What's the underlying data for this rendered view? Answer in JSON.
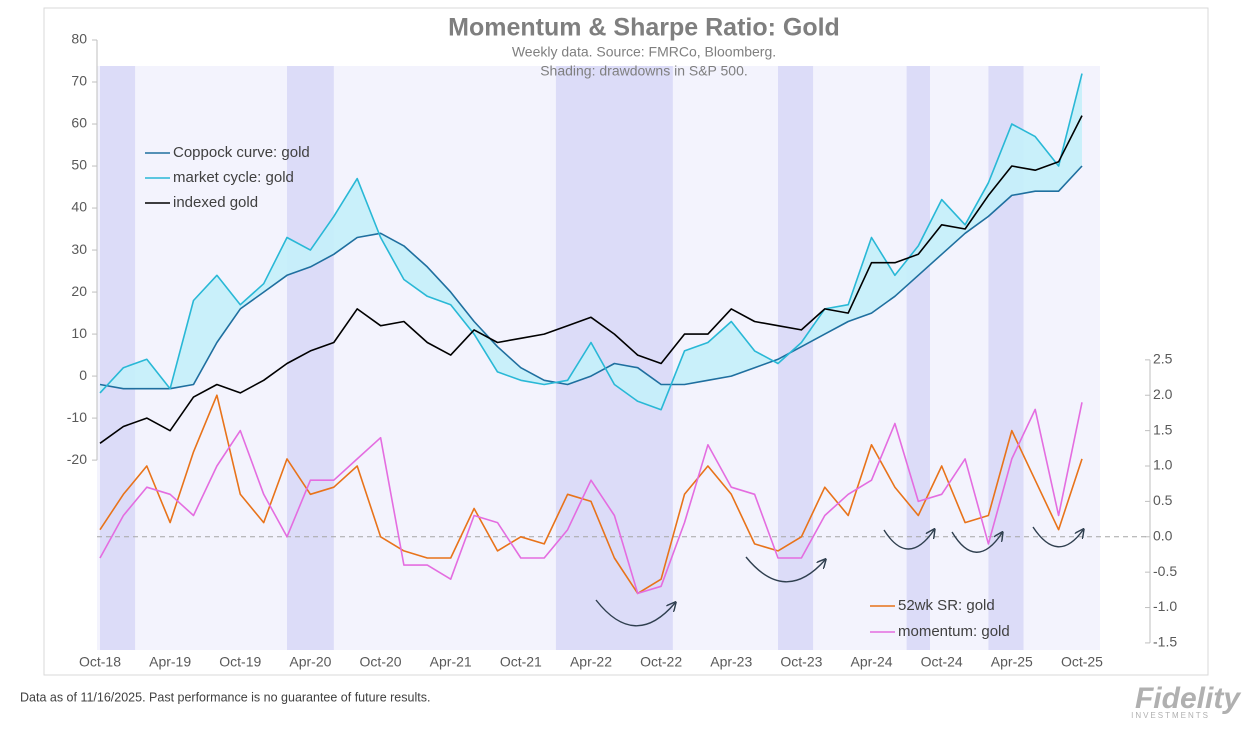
{
  "chart_data": {
    "type": "line",
    "title": "Momentum & Sharpe Ratio: Gold",
    "subtitle": "Weekly data.  Source: FMRCo, Bloomberg.",
    "subtitle2": "Shading: drawdowns in S&P 500.",
    "footnote": "Data as of 11/16/2025. Past performance is no guarantee of future results.",
    "brand": "Fidelity",
    "brand_sub": "INVESTMENTS",
    "x": [
      "2018-10",
      "2018-12",
      "2019-02",
      "2019-04",
      "2019-06",
      "2019-08",
      "2019-10",
      "2019-12",
      "2020-02",
      "2020-04",
      "2020-06",
      "2020-08",
      "2020-10",
      "2020-12",
      "2021-02",
      "2021-04",
      "2021-06",
      "2021-08",
      "2021-10",
      "2021-12",
      "2022-02",
      "2022-04",
      "2022-06",
      "2022-08",
      "2022-10",
      "2022-12",
      "2023-02",
      "2023-04",
      "2023-06",
      "2023-08",
      "2023-10",
      "2023-12",
      "2024-02",
      "2024-04",
      "2024-06",
      "2024-08",
      "2024-10",
      "2024-12",
      "2025-02",
      "2025-04",
      "2025-06",
      "2025-08",
      "2025-10"
    ],
    "xticks": [
      {
        "value": "2018-10",
        "label": "Oct-18"
      },
      {
        "value": "2019-04",
        "label": "Apr-19"
      },
      {
        "value": "2019-10",
        "label": "Oct-19"
      },
      {
        "value": "2020-04",
        "label": "Apr-20"
      },
      {
        "value": "2020-10",
        "label": "Oct-20"
      },
      {
        "value": "2021-04",
        "label": "Apr-21"
      },
      {
        "value": "2021-10",
        "label": "Oct-21"
      },
      {
        "value": "2022-04",
        "label": "Apr-22"
      },
      {
        "value": "2022-10",
        "label": "Oct-22"
      },
      {
        "value": "2023-04",
        "label": "Apr-23"
      },
      {
        "value": "2023-10",
        "label": "Oct-23"
      },
      {
        "value": "2024-04",
        "label": "Apr-24"
      },
      {
        "value": "2024-10",
        "label": "Oct-24"
      },
      {
        "value": "2025-04",
        "label": "Apr-25"
      },
      {
        "value": "2025-10",
        "label": "Oct-25"
      }
    ],
    "ylim": [
      -65.2,
      80
    ],
    "yticks": [
      -20,
      -10,
      0,
      10,
      20,
      30,
      40,
      50,
      60,
      70,
      80
    ],
    "y2lim": [
      -1.6,
      7.02
    ],
    "y2ticks": [
      {
        "value": -1.5,
        "label": "-1.5"
      },
      {
        "value": -1,
        "label": "-1.0"
      },
      -0.5,
      {
        "value": 0,
        "label": "0.0"
      },
      0.5,
      {
        "value": 1,
        "label": "1.0"
      },
      1.5,
      {
        "value": 2,
        "label": "2.0"
      },
      2.5
    ],
    "y2_reference": 0,
    "band_fill": "#c4f0fa",
    "shading_color": "#c9c9f4",
    "shading": [
      [
        "2018-10",
        "2019-01"
      ],
      [
        "2020-02",
        "2020-06"
      ],
      [
        "2022-01",
        "2022-11"
      ],
      [
        "2023-08",
        "2023-11"
      ],
      [
        "2024-07",
        "2024-09"
      ],
      [
        "2025-02",
        "2025-05"
      ]
    ],
    "series": [
      {
        "name": "Coppock curve: gold",
        "color": "#1f6f9f",
        "values": [
          -2,
          -3,
          -3,
          -3,
          -2,
          8,
          16,
          20,
          24,
          26,
          29,
          33,
          34,
          31,
          26,
          20,
          13,
          7,
          2,
          -1,
          -2,
          0,
          3,
          2,
          -2,
          -2,
          -1,
          0,
          2,
          4,
          7,
          10,
          13,
          15,
          19,
          24,
          29,
          34,
          38,
          43,
          44,
          44,
          50
        ]
      },
      {
        "name": "market cycle: gold",
        "color": "#29b8d6",
        "values": [
          -4,
          2,
          4,
          -3,
          18,
          24,
          17,
          22,
          33,
          30,
          38,
          47,
          33,
          23,
          19,
          17,
          10,
          1,
          -1,
          -2,
          -1,
          8,
          -2,
          -6,
          -8,
          6,
          8,
          13,
          6,
          3,
          8,
          16,
          17,
          33,
          24,
          31,
          42,
          36,
          46,
          60,
          57,
          50,
          72
        ]
      },
      {
        "name": "indexed gold",
        "color": "#000000",
        "values": [
          -16,
          -12,
          -10,
          -13,
          -5,
          -2,
          -4,
          -1,
          3,
          6,
          8,
          16,
          12,
          13,
          8,
          5,
          11,
          8,
          9,
          10,
          12,
          14,
          10,
          5,
          3,
          10,
          10,
          16,
          13,
          12,
          11,
          16,
          15,
          27,
          27,
          29,
          36,
          35,
          43,
          50,
          49,
          51,
          62
        ]
      },
      {
        "name": "52wk SR: gold",
        "color": "#e8731a",
        "axis": "y2",
        "values": [
          0.1,
          0.6,
          1.0,
          0.2,
          1.2,
          2.0,
          0.6,
          0.2,
          1.1,
          0.6,
          0.7,
          1.0,
          0.0,
          -0.2,
          -0.3,
          -0.3,
          0.4,
          -0.2,
          0.0,
          -0.1,
          0.6,
          0.5,
          -0.3,
          -0.8,
          -0.6,
          0.6,
          1.0,
          0.6,
          -0.1,
          -0.2,
          0.0,
          0.7,
          0.3,
          1.3,
          0.7,
          0.3,
          1.0,
          0.2,
          0.3,
          1.5,
          0.8,
          0.1,
          1.1
        ]
      },
      {
        "name": "momentum: gold",
        "color": "#e46de0",
        "axis": "y2",
        "values": [
          -0.3,
          0.3,
          0.7,
          0.6,
          0.3,
          1.0,
          1.5,
          0.6,
          0.0,
          0.8,
          0.8,
          1.1,
          1.4,
          -0.4,
          -0.4,
          -0.6,
          0.3,
          0.2,
          -0.3,
          -0.3,
          0.1,
          0.8,
          0.3,
          -0.8,
          -0.7,
          0.2,
          1.3,
          0.7,
          0.6,
          -0.3,
          -0.3,
          0.3,
          0.6,
          0.8,
          1.6,
          0.5,
          0.6,
          1.1,
          -0.1,
          1.1,
          1.8,
          0.3,
          1.9
        ]
      }
    ]
  }
}
